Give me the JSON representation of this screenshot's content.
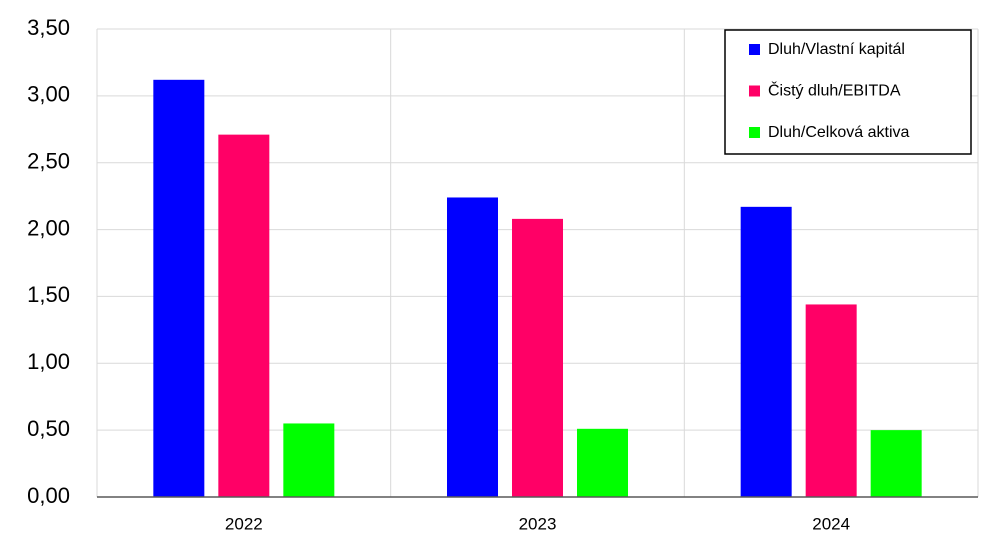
{
  "chart_data": {
    "type": "bar",
    "categories": [
      "2022",
      "2023",
      "2024"
    ],
    "series": [
      {
        "name": "Dluh/Vlastní kapitál",
        "color": "#0000ff",
        "values": [
          3.12,
          2.24,
          2.17
        ]
      },
      {
        "name": "Čistý dluh/EBITDA",
        "color": "#ff0066",
        "values": [
          2.71,
          2.08,
          1.44
        ]
      },
      {
        "name": "Dluh/Celková aktiva",
        "color": "#00ff00",
        "values": [
          0.55,
          0.51,
          0.5
        ]
      }
    ],
    "ylim": [
      0,
      3.5
    ],
    "yticks": [
      {
        "value": 0,
        "label": "0,00"
      },
      {
        "value": 0.5,
        "label": "0,50"
      },
      {
        "value": 1,
        "label": "1,00"
      },
      {
        "value": 1.5,
        "label": "1,50"
      },
      {
        "value": 2,
        "label": "2,00"
      },
      {
        "value": 2.5,
        "label": "2,50"
      },
      {
        "value": 3,
        "label": "3,00"
      },
      {
        "value": 3.5,
        "label": "3,50"
      }
    ],
    "grid": true,
    "legend": "upper right"
  }
}
